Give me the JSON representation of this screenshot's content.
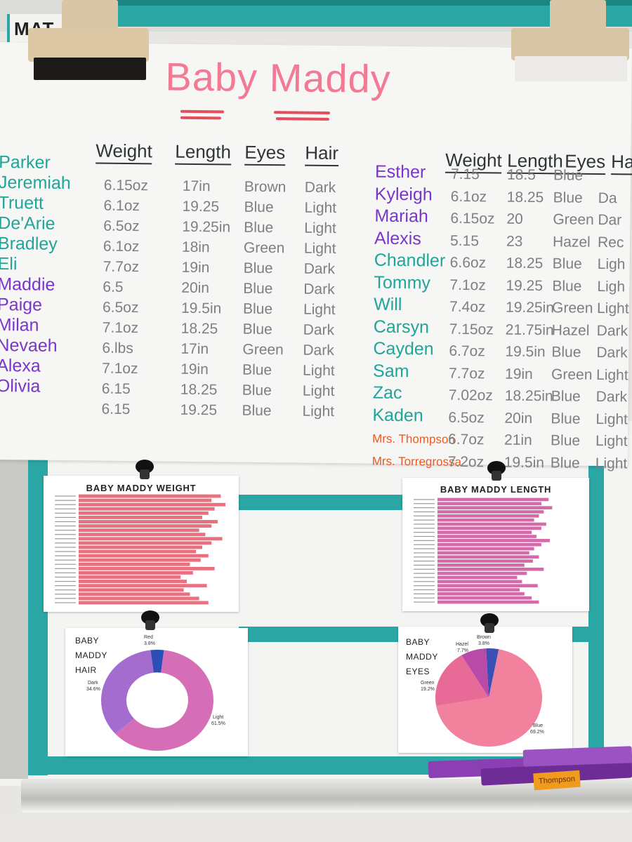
{
  "sign": {
    "text": "MAT"
  },
  "chart_paper": {
    "title": "Baby Maddy",
    "left_table": {
      "headers": [
        "Weight",
        "Length",
        "Eyes",
        "Hair"
      ],
      "rows": [
        {
          "name": "Parker",
          "ink": "teal",
          "weight": "",
          "length": "",
          "eyes": "",
          "hair": ""
        },
        {
          "name": "Jeremiah",
          "ink": "teal",
          "weight": "6.15oz",
          "length": "17in",
          "eyes": "Brown",
          "hair": "Dark"
        },
        {
          "name": "Truett",
          "ink": "teal",
          "weight": "6.1oz",
          "length": "19.25",
          "eyes": "Blue",
          "hair": "Light"
        },
        {
          "name": "De'Arie",
          "ink": "teal",
          "weight": "6.5oz",
          "length": "19.25in",
          "eyes": "Blue",
          "hair": "Light"
        },
        {
          "name": "Bradley",
          "ink": "teal",
          "weight": "6.1oz",
          "length": "18in",
          "eyes": "Green",
          "hair": "Light"
        },
        {
          "name": "Eli",
          "ink": "teal",
          "weight": "7.7oz",
          "length": "19in",
          "eyes": "Blue",
          "hair": "Dark"
        },
        {
          "name": "Maddie",
          "ink": "purple",
          "weight": "6.5",
          "length": "20in",
          "eyes": "Blue",
          "hair": "Dark"
        },
        {
          "name": "Paige",
          "ink": "purple",
          "weight": "6.5oz",
          "length": "19.5in",
          "eyes": "Blue",
          "hair": "Light"
        },
        {
          "name": "Milan",
          "ink": "purple",
          "weight": "7.1oz",
          "length": "18.25",
          "eyes": "Blue",
          "hair": "Dark"
        },
        {
          "name": "Nevaeh",
          "ink": "purple",
          "weight": "6.lbs",
          "length": "17in",
          "eyes": "Green",
          "hair": "Dark"
        },
        {
          "name": "Alexa",
          "ink": "purple",
          "weight": "7.1oz",
          "length": "19in",
          "eyes": "Blue",
          "hair": "Light"
        },
        {
          "name": "Olivia",
          "ink": "purple",
          "weight": "6.15",
          "length": "18.25",
          "eyes": "Blue",
          "hair": "Light"
        },
        {
          "name": "",
          "ink": "purple",
          "weight": "6.15",
          "length": "19.25",
          "eyes": "Blue",
          "hair": "Light"
        }
      ]
    },
    "right_table": {
      "headers": [
        "Weight",
        "Length",
        "Eyes",
        "Ha"
      ],
      "rows": [
        {
          "name": "Esther",
          "ink": "purple",
          "weight": "7.15",
          "length": "18.5",
          "eyes": "Blue",
          "hair": ""
        },
        {
          "name": "Kyleigh",
          "ink": "purple",
          "weight": "6.1oz",
          "length": "18.25",
          "eyes": "Blue",
          "hair": "Da"
        },
        {
          "name": "Mariah",
          "ink": "purple",
          "weight": "6.15oz",
          "length": "20",
          "eyes": "Green",
          "hair": "Dar"
        },
        {
          "name": "Alexis",
          "ink": "purple",
          "weight": "5.15",
          "length": "23",
          "eyes": "Hazel",
          "hair": "Rec"
        },
        {
          "name": "Chandler",
          "ink": "teal",
          "weight": "6.6oz",
          "length": "18.25",
          "eyes": "Blue",
          "hair": "Ligh"
        },
        {
          "name": "Tommy",
          "ink": "teal",
          "weight": "7.1oz",
          "length": "19.25",
          "eyes": "Blue",
          "hair": "Ligh"
        },
        {
          "name": "Will",
          "ink": "teal",
          "weight": "7.4oz",
          "length": "19.25in",
          "eyes": "Green",
          "hair": "Light"
        },
        {
          "name": "Carsyn",
          "ink": "teal",
          "weight": "7.15oz",
          "length": "21.75in",
          "eyes": "Hazel",
          "hair": "Dark"
        },
        {
          "name": "Cayden",
          "ink": "teal",
          "weight": "6.7oz",
          "length": "19.5in",
          "eyes": "Blue",
          "hair": "Dark"
        },
        {
          "name": "Sam",
          "ink": "teal",
          "weight": "7.7oz",
          "length": "19in",
          "eyes": "Green",
          "hair": "Light"
        },
        {
          "name": "Zac",
          "ink": "teal",
          "weight": "7.02oz",
          "length": "18.25in",
          "eyes": "Blue",
          "hair": "Dark"
        },
        {
          "name": "Kaden",
          "ink": "teal",
          "weight": "6.5oz",
          "length": "20in",
          "eyes": "Blue",
          "hair": "Light"
        },
        {
          "name": "Mrs. Thompson",
          "ink": "orange",
          "weight": "6.7oz",
          "length": "21in",
          "eyes": "Blue",
          "hair": "Light"
        },
        {
          "name": "Mrs. Torregrossa",
          "ink": "orange",
          "weight": "7.2oz",
          "length": "19.5in",
          "eyes": "Blue",
          "hair": "Light"
        }
      ]
    }
  },
  "printouts": {
    "weight_chart": {
      "title": "BABY MADDY WEIGHT",
      "bar_count": 26,
      "bar_color": "#e9707f"
    },
    "length_chart": {
      "title": "BABY MADDY LENGTH",
      "bar_count": 26,
      "bar_color": "#d56aab"
    },
    "hair_chart": {
      "title_lines": [
        "BABY",
        "MADDY",
        "HAIR"
      ],
      "slices": [
        {
          "label": "Light",
          "pct": "61.5%",
          "value": 61.5,
          "color": "#d66eb7"
        },
        {
          "label": "Dark",
          "pct": "34.6%",
          "value": 34.6,
          "color": "#a56cd0"
        },
        {
          "label": "Red",
          "pct": "3.8%",
          "value": 3.8,
          "color": "#2d4fb5"
        }
      ]
    },
    "eyes_chart": {
      "title_lines": [
        "BABY",
        "MADDY",
        "EYES"
      ],
      "slices": [
        {
          "label": "Blue",
          "pct": "69.2%",
          "value": 69.2,
          "color": "#f1819c"
        },
        {
          "label": "Green",
          "pct": "19.2%",
          "value": 19.2,
          "color": "#e86a96"
        },
        {
          "label": "Hazel",
          "pct": "7.7%",
          "value": 7.7,
          "color": "#b84aa8"
        },
        {
          "label": "Brown",
          "pct": "3.8%",
          "value": 3.8,
          "color": "#3b50b5"
        }
      ]
    }
  },
  "name_tag": {
    "text": "Thompson"
  },
  "colors": {
    "teal_ink": "#21a49a",
    "purple_ink": "#7a36c7",
    "orange_ink": "#ec5a22",
    "title_pink": "#f27a95"
  }
}
